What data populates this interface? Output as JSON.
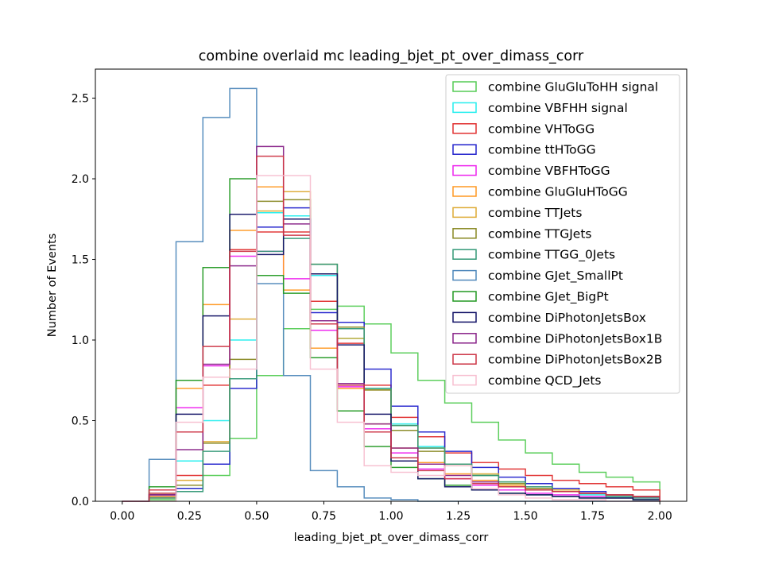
{
  "chart_data": {
    "type": "histogram",
    "title": "combine overlaid mc leading_bjet_pt_over_dimass_corr",
    "xlabel": "leading_bjet_pt_over_dimass_corr",
    "ylabel": "Number of Events",
    "xlim": [
      -0.1,
      2.1
    ],
    "ylim": [
      0,
      2.68
    ],
    "xticks": [
      "0.00",
      "0.25",
      "0.50",
      "0.75",
      "1.00",
      "1.25",
      "1.50",
      "1.75",
      "2.00"
    ],
    "yticks": [
      "0.0",
      "0.5",
      "1.0",
      "1.5",
      "2.0",
      "2.5"
    ],
    "legend_position": "top-right",
    "bin_edges": [
      0.0,
      0.1,
      0.2,
      0.3,
      0.4,
      0.5,
      0.6,
      0.7,
      0.8,
      0.9,
      1.0,
      1.1,
      1.2,
      1.3,
      1.4,
      1.5,
      1.6,
      1.7,
      1.8,
      1.9,
      2.0
    ],
    "series": [
      {
        "name": "combine GluGluToHH signal",
        "color": "#55cc55",
        "values": [
          0.0,
          0.01,
          0.08,
          0.16,
          0.39,
          0.78,
          1.07,
          1.19,
          1.21,
          1.1,
          0.92,
          0.75,
          0.61,
          0.49,
          0.38,
          0.3,
          0.23,
          0.18,
          0.15,
          0.12
        ]
      },
      {
        "name": "combine VBFHH signal",
        "color": "#22eeee",
        "values": [
          0.0,
          0.05,
          0.25,
          0.5,
          1.0,
          1.79,
          1.77,
          1.4,
          1.01,
          0.7,
          0.48,
          0.34,
          0.23,
          0.16,
          0.12,
          0.09,
          0.06,
          0.04,
          0.03,
          0.02
        ]
      },
      {
        "name": "combine VHToGG",
        "color": "#e03030",
        "values": [
          0.0,
          0.05,
          0.16,
          0.72,
          1.56,
          1.67,
          1.67,
          1.24,
          0.98,
          0.72,
          0.52,
          0.4,
          0.3,
          0.24,
          0.2,
          0.16,
          0.13,
          0.11,
          0.09,
          0.07
        ]
      },
      {
        "name": "combine ttHToGG",
        "color": "#2222cc",
        "values": [
          0.0,
          0.03,
          0.08,
          0.23,
          0.7,
          1.7,
          1.82,
          1.17,
          1.11,
          0.82,
          0.59,
          0.43,
          0.31,
          0.21,
          0.15,
          0.11,
          0.08,
          0.06,
          0.04,
          0.03
        ]
      },
      {
        "name": "combine VBFHToGG",
        "color": "#ee22ee",
        "values": [
          0.0,
          0.04,
          0.58,
          0.84,
          1.52,
          1.55,
          1.38,
          1.06,
          0.71,
          0.45,
          0.3,
          0.2,
          0.14,
          0.1,
          0.07,
          0.05,
          0.04,
          0.03,
          0.02,
          0.02
        ]
      },
      {
        "name": "combine GluGluHToGG",
        "color": "#ff9922",
        "values": [
          0.0,
          0.03,
          0.7,
          1.22,
          1.68,
          1.95,
          1.31,
          0.95,
          0.7,
          0.48,
          0.33,
          0.24,
          0.17,
          0.13,
          0.1,
          0.08,
          0.06,
          0.05,
          0.04,
          0.03
        ]
      },
      {
        "name": "combine TTJets",
        "color": "#ddaa33",
        "values": [
          0.0,
          0.02,
          0.13,
          0.37,
          1.13,
          1.8,
          1.92,
          1.41,
          1.01,
          0.69,
          0.47,
          0.33,
          0.23,
          0.17,
          0.12,
          0.09,
          0.07,
          0.05,
          0.04,
          0.03
        ]
      },
      {
        "name": "combine TTGJets",
        "color": "#888822",
        "values": [
          0.0,
          0.02,
          0.1,
          0.36,
          0.88,
          1.86,
          1.87,
          1.47,
          1.08,
          0.69,
          0.44,
          0.31,
          0.22,
          0.16,
          0.11,
          0.08,
          0.06,
          0.05,
          0.04,
          0.03
        ]
      },
      {
        "name": "combine TTGG_0Jets",
        "color": "#339977",
        "values": [
          0.0,
          0.02,
          0.06,
          0.31,
          0.76,
          1.55,
          1.63,
          1.47,
          1.07,
          0.7,
          0.47,
          0.33,
          0.23,
          0.16,
          0.12,
          0.09,
          0.06,
          0.05,
          0.03,
          0.02
        ]
      },
      {
        "name": "combine GJet_SmallPt",
        "color": "#4f88bb",
        "values": [
          0.0,
          0.26,
          1.61,
          2.38,
          2.56,
          1.35,
          0.78,
          0.19,
          0.09,
          0.02,
          0.01,
          0.0,
          0.0,
          0.0,
          0.0,
          0.0,
          0.0,
          0.0,
          0.0,
          0.0
        ]
      },
      {
        "name": "combine GJet_BigPt",
        "color": "#229922",
        "values": [
          0.0,
          0.09,
          0.75,
          1.45,
          2.0,
          1.4,
          1.29,
          0.89,
          0.56,
          0.34,
          0.21,
          0.14,
          0.1,
          0.07,
          0.05,
          0.04,
          0.03,
          0.02,
          0.02,
          0.01
        ]
      },
      {
        "name": "combine DiPhotonJetsBox",
        "color": "#111166",
        "values": [
          0.0,
          0.04,
          0.54,
          1.15,
          1.78,
          1.53,
          1.75,
          1.41,
          0.97,
          0.54,
          0.25,
          0.14,
          0.09,
          0.07,
          0.05,
          0.04,
          0.03,
          0.02,
          0.02,
          0.01
        ]
      },
      {
        "name": "combine DiPhotonJetsBox1B",
        "color": "#882288",
        "values": [
          0.0,
          0.04,
          0.32,
          0.85,
          1.46,
          2.2,
          1.72,
          1.12,
          0.73,
          0.48,
          0.33,
          0.23,
          0.16,
          0.12,
          0.09,
          0.07,
          0.06,
          0.05,
          0.04,
          0.03
        ]
      },
      {
        "name": "combine DiPhotonJetsBox2B",
        "color": "#cc3344",
        "values": [
          0.0,
          0.07,
          0.43,
          0.96,
          1.55,
          2.14,
          1.65,
          1.1,
          0.72,
          0.43,
          0.27,
          0.19,
          0.14,
          0.11,
          0.09,
          0.07,
          0.06,
          0.05,
          0.04,
          0.03
        ]
      },
      {
        "name": "combine QCD_Jets",
        "color": "#f7bfd0",
        "values": [
          0.0,
          0.0,
          0.49,
          0.77,
          0.82,
          2.02,
          2.02,
          0.82,
          0.49,
          0.22,
          0.18,
          0.16,
          0.22,
          0.08,
          0.04,
          0.02,
          0.01,
          0.01,
          0.0,
          0.0
        ]
      }
    ]
  }
}
